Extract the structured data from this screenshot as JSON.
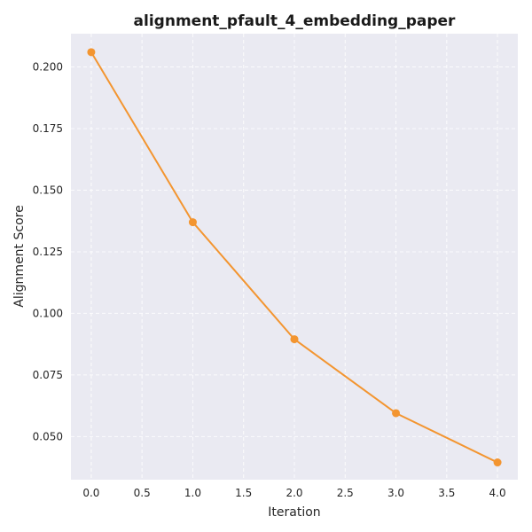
{
  "chart_data": {
    "type": "line",
    "title": "alignment_pfault_4_embedding_paper",
    "xlabel": "Iteration",
    "ylabel": "Alignment Score",
    "xlim": [
      -0.2,
      4.2
    ],
    "ylim": [
      0.0325,
      0.2135
    ],
    "x_ticks": [
      0.0,
      0.5,
      1.0,
      1.5,
      2.0,
      2.5,
      3.0,
      3.5,
      4.0
    ],
    "y_ticks": [
      0.05,
      0.075,
      0.1,
      0.125,
      0.15,
      0.175,
      0.2
    ],
    "x_tick_labels": [
      "0.0",
      "0.5",
      "1.0",
      "1.5",
      "2.0",
      "2.5",
      "3.0",
      "3.5",
      "4.0"
    ],
    "y_tick_labels": [
      "0.050",
      "0.075",
      "0.100",
      "0.125",
      "0.150",
      "0.175",
      "0.200"
    ],
    "grid": true,
    "series": [
      {
        "x": [
          0,
          1,
          2,
          3,
          4
        ],
        "values": [
          0.206,
          0.137,
          0.0895,
          0.0595,
          0.0395
        ],
        "color": "#f39530"
      }
    ],
    "plot_background": "#eaeaf2"
  }
}
